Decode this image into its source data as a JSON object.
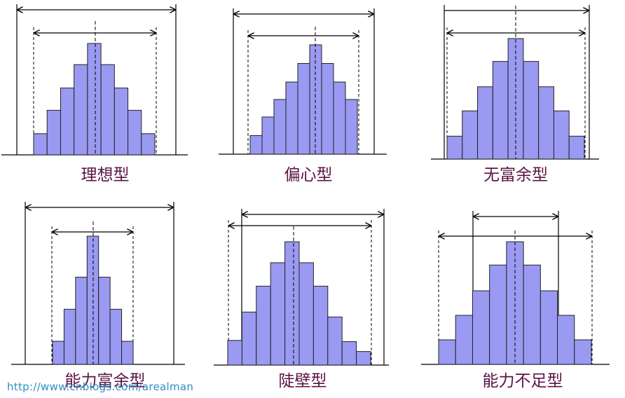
{
  "diagram": {
    "stroke_color": "#000000",
    "bar_fill": "#9a9af2",
    "bar_stroke": "#222222",
    "caption_color": "#5a1446"
  },
  "panels": [
    {
      "caption": "理想型",
      "bars": [
        0.19,
        0.4,
        0.6,
        0.81,
        1.0,
        0.81,
        0.6,
        0.4,
        0.19
      ]
    },
    {
      "caption": "偏心型",
      "bars": [
        0.17,
        0.34,
        0.5,
        0.66,
        0.83,
        1.0,
        0.83,
        0.66,
        0.5
      ]
    },
    {
      "caption": "无富余型",
      "bars": [
        0.19,
        0.4,
        0.6,
        0.81,
        1.0,
        0.81,
        0.6,
        0.4,
        0.19
      ]
    },
    {
      "caption": "能力富余型",
      "bars": [
        0.18,
        0.43,
        0.68,
        1.0,
        0.68,
        0.43,
        0.18
      ]
    },
    {
      "caption": "陡壁型",
      "bars": [
        0.2,
        0.43,
        0.64,
        0.83,
        1.0,
        0.83,
        0.64,
        0.39,
        0.19,
        0.11
      ]
    },
    {
      "caption": "能力不足型",
      "bars": [
        0.2,
        0.4,
        0.6,
        0.81,
        1.0,
        0.81,
        0.6,
        0.4,
        0.2
      ]
    }
  ],
  "watermark": "http://www.cnblogs.com/arealman"
}
